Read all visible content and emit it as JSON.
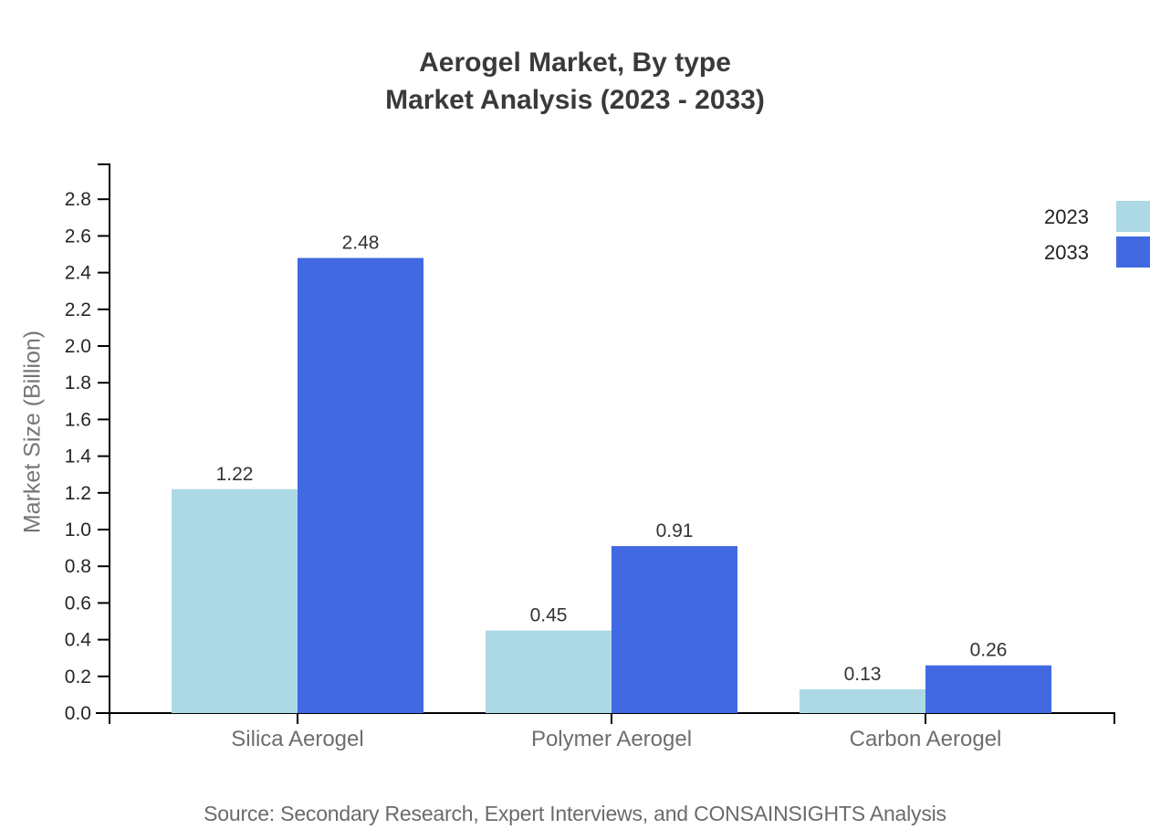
{
  "chart_data": {
    "type": "bar",
    "title": "Aerogel Market, By type",
    "subtitle": "Market Analysis (2023 - 2033)",
    "xlabel": "",
    "ylabel": "Market Size (Billion)",
    "categories": [
      "Silica Aerogel",
      "Polymer Aerogel",
      "Carbon Aerogel"
    ],
    "series": [
      {
        "name": "2023",
        "color": "#ADD8E6",
        "values": [
          1.22,
          0.45,
          0.13
        ]
      },
      {
        "name": "2033",
        "color": "#4169E1",
        "values": [
          2.48,
          0.91,
          0.26
        ]
      }
    ],
    "ylim": [
      0,
      3.0
    ],
    "ytick_step": 0.2,
    "ytick_label_max": 2.8,
    "ytick_decimals": 1,
    "bar_value_decimals": 2,
    "grid": false,
    "legend_position": "top-right",
    "bars_labeled": true
  },
  "source_note": "Source: Secondary Research, Expert Interviews, and CONSAINSIGHTS Analysis",
  "colors": {
    "axis": "#000000",
    "title_text": "#3a3a3a",
    "tick_label_text": "#262626",
    "category_label_text": "#6e6e6e",
    "value_label_text": "#333333",
    "legend_text": "#222222",
    "y_axis_label_text": "#757575",
    "source_text": "#6b6b6b"
  }
}
